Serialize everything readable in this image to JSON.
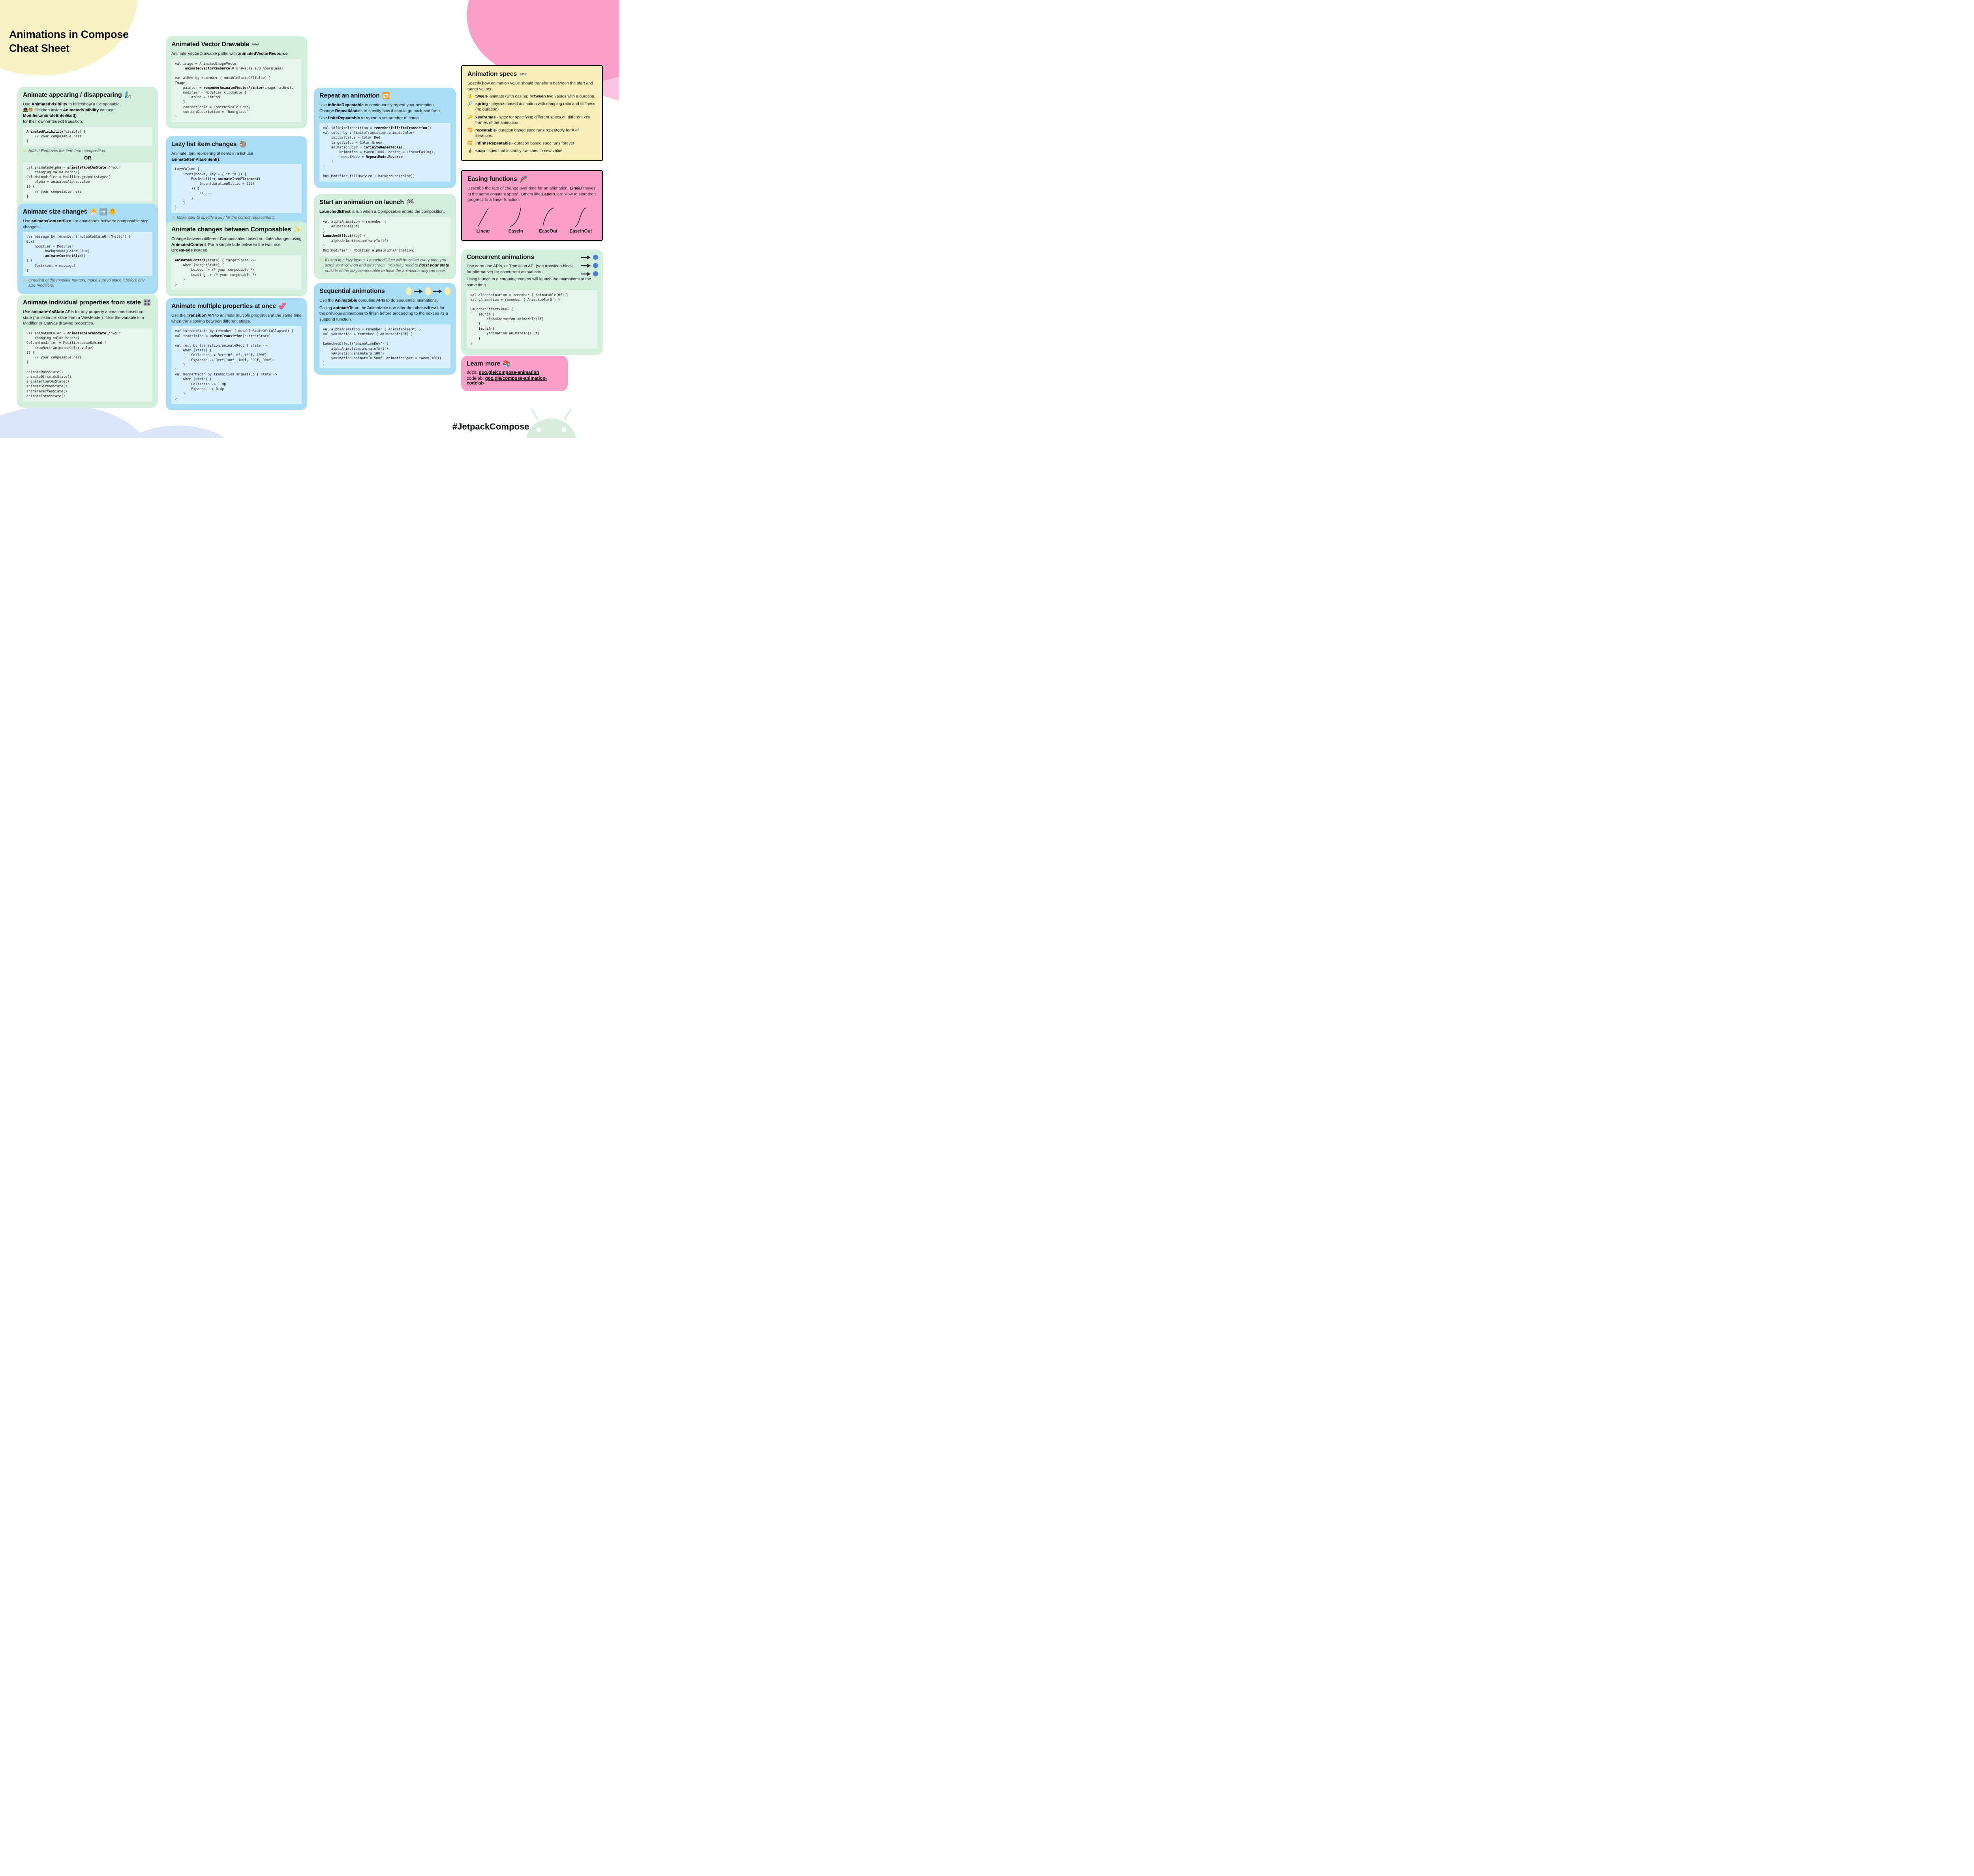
{
  "page": {
    "title_line1": "Animations in Compose",
    "title_line2": "Cheat Sheet",
    "hashtag": "#JetpackCompose"
  },
  "colors": {
    "card_green": "#D2EFDC",
    "card_blue": "#A9DDF6",
    "card_yellow": "#F6EFB9",
    "card_pink": "#F99FC9",
    "code_bg_green": "#E7F6EC",
    "code_bg_blue": "#D8EFFC",
    "blob_yellow": "#F8F2C4",
    "blob_pink": "#F99FC9",
    "blob_pink_light": "#FBC6DD",
    "blob_blue": "#DAE5F9",
    "android_green": "#D8ECDB",
    "concurrent_dot_blue": "#4A7BE8",
    "sequential_dot_yellow": "#F5EFA9",
    "warning_yellow": "#F2B200"
  },
  "cards": {
    "appearing": {
      "title": "Animate appearing / disappearing",
      "emoji": "🧞",
      "intro": [
        {
          "t": "Use "
        },
        {
          "t": "AnimatedVisibility",
          "b": true
        },
        {
          "t": " to hide/show a Composable.\n"
        },
        {
          "t": "👧🏾👦🏼 Children inside "
        },
        {
          "t": "AnimatedVisibility",
          "b": true
        },
        {
          "t": " can use "
        },
        {
          "t": "Modifier.animateEnterExit()",
          "b": true
        },
        {
          "t": "\nfor their own enter/exit transition."
        }
      ],
      "code1": [
        {
          "t": "AnimatedVisibility",
          "b": true
        },
        {
          "t": "(visible) {\n    // your composable here\n}"
        }
      ],
      "warn1_icon": "⚠",
      "warn1": [
        {
          "t": "Adds / Removes the item from composition."
        }
      ],
      "or_label": "OR",
      "code2": [
        {
          "t": "val animatedAlpha = "
        },
        {
          "t": "animateFloatAsState",
          "b": true
        },
        {
          "t": "(/*your\n    changing value here*/)\nColumn(modifier = Modifier.graphicsLayer{\n    alpha = animatedAlpha.value\n}) {\n    // your composable here\n}"
        }
      ],
      "warn2_icon": "⚠",
      "warn2": [
        {
          "t": "Keeps item in the composition - animates its alpha instead"
        }
      ]
    },
    "size": {
      "title": "Animate size changes",
      "emoji": "🐣 ➡️ 🐥",
      "intro": [
        {
          "t": "Use "
        },
        {
          "t": "animateContentSize",
          "b": true
        },
        {
          "t": "  for animations between composable size changes."
        }
      ],
      "code": [
        {
          "t": "var message by remember { mutableStateOf(\"Hello\") }\nBox(\n    modifier = Modifier\n        .background(Color.Blue)\n        ."
        },
        {
          "t": "animateContentSize",
          "b": true
        },
        {
          "t": "()\n) {\n    Text(text = message)\n}"
        }
      ],
      "warn_icon": "⚠",
      "warn": [
        {
          "t": "Ordering of the modifier matters, make sure to place it before any size modifiers."
        }
      ]
    },
    "individual": {
      "title": "Animate individual properties from state",
      "emoji": "🎛️",
      "intro": [
        {
          "t": "Use "
        },
        {
          "t": "animate*AsState",
          "b": true
        },
        {
          "t": " APIs for any property animations based on state (for instance: state from a ViewModel).  Use the variable in a Modifier or Canvas drawing properties."
        }
      ],
      "code": [
        {
          "t": "val animatedColor = "
        },
        {
          "t": "animateColorAsState",
          "b": true
        },
        {
          "t": "(/*your\n    changing value here*/)\nColumn(modifier = Modifier.drawBehind {\n    drawRect(animatedColor.value)\n}) {\n    // your composable here\n}\n\nanimateDpAsState()\nanimateOffsetAsState()\nanimateFloatAsState()\nanimateSizeAsState()\nanimateRectAsState()\nanimateIntAsState()"
        }
      ]
    },
    "avd": {
      "title": "Animated Vector Drawable",
      "emoji": "〰️",
      "intro": [
        {
          "t": "Animate VectorDrawable paths with "
        },
        {
          "t": "animatedVectorResource",
          "b": true
        }
      ],
      "code": [
        {
          "t": "val image = AnimatedImageVector\n    ."
        },
        {
          "t": "animatedVectorResource",
          "b": true
        },
        {
          "t": "(R.drawable.avd_hourglass)\n\nvar atEnd by remember { mutableStateOf(false) }\nImage(\n    painter = "
        },
        {
          "t": "rememberAnimatedVectorPainter",
          "b": true
        },
        {
          "t": "(image, atEnd),\n    modifier = Modifier.clickable {\n        atEnd = !atEnd\n    },\n    contentScale = ContentScale.Crop,\n    contentDescription = \"hourglass\"\n)"
        }
      ]
    },
    "lazy": {
      "title": "Lazy list item changes",
      "emoji": "🦥",
      "intro": [
        {
          "t": "Animate item reordering of items in a list use "
        },
        {
          "t": "animateItemPlacement()",
          "b": true
        },
        {
          "t": "."
        }
      ],
      "code": [
        {
          "t": "LazyColumn {\n    items(books, key = { it.id }) {\n        Row(Modifier."
        },
        {
          "t": "animateItemPlacement",
          "b": true
        },
        {
          "t": "(\n            tween(durationMillis = 250)\n        )) {\n            // ...\n        }\n    }\n}"
        }
      ],
      "warn1_icon": "⚠",
      "warn1": [
        {
          "t": "Make sure to specify a key for the correct replacement."
        }
      ],
      "warn2_icon": "🔜",
      "warn2": [
        {
          "t": "Additions and deletions are coming soon."
        }
      ]
    },
    "between": {
      "title": "Animate changes between Composables",
      "emoji": "✨",
      "intro": [
        {
          "t": "Change between different Composables based on state changes using "
        },
        {
          "t": "AnimatedContent",
          "b": true
        },
        {
          "t": ". For a simple fade between the two, use "
        },
        {
          "t": "CrossFade",
          "b": true
        },
        {
          "t": " instead."
        }
      ],
      "code": [
        {
          "t": "AnimatedContent",
          "b": true
        },
        {
          "t": "(state) { targetState ->\n    when (targetState) {\n        Loaded -> /* your composable */\n        Loading -> /* your composable */\n    }\n}"
        }
      ]
    },
    "multiple": {
      "title": "Animate multiple properties at once",
      "emoji": "💞",
      "intro": [
        {
          "t": "Use the "
        },
        {
          "t": "Transition",
          "b": true
        },
        {
          "t": " API to animate multiple properties at the same time when transitioning between different states."
        }
      ],
      "code": [
        {
          "t": "var currentState by remember { mutableStateOf(Collapsed) }\nval transition = "
        },
        {
          "t": "updateTransition",
          "b": true
        },
        {
          "t": "(currentState)\n\nval rect by transition.animateRect { state ->\n    when (state) {\n        Collapsed -> Rect(0f, 0f, 100f, 100f)\n        Expanded -> Rect(100f, 100f, 300f, 300f)\n    }\n}\nval borderWidth by transition.animateDp { state ->\n    when (state) {\n        Collapsed -> 1.dp\n        Expanded -> 0.dp\n    }\n}"
        }
      ]
    },
    "repeat": {
      "title": "Repeat an animation",
      "emoji": "🔁",
      "intro1": [
        {
          "t": "Use "
        },
        {
          "t": "infiniteRepeatable",
          "b": true
        },
        {
          "t": " to continuously repeat your animation. Change "
        },
        {
          "t": "RepeatMode",
          "b": true
        },
        {
          "t": "'s to specify how it should go back and forth."
        }
      ],
      "intro2": [
        {
          "t": "Use "
        },
        {
          "t": "finiteRepeatable",
          "b": true
        },
        {
          "t": " to repeat a set number of times."
        }
      ],
      "code": [
        {
          "t": "val infiniteTransition = "
        },
        {
          "t": "rememberInfiniteTransition",
          "b": true
        },
        {
          "t": "()\nval color by infiniteTransition.animateColor(\n    initialValue = Color.Red,\n    targetValue = Color.Green,\n    animationSpec = "
        },
        {
          "t": "infiniteRepeatable",
          "b": true
        },
        {
          "t": "(\n        animation = tween(1000, easing = LinearEasing),\n        repeatMode = "
        },
        {
          "t": "RepeatMode.Reverse",
          "b": true
        },
        {
          "t": "\n    )\n)\n\nBox(Modifier.fillMaxSize().background(color))"
        }
      ]
    },
    "launch": {
      "title": "Start an animation on launch",
      "emoji": "🏁",
      "intro": [
        {
          "t": "LaunchedEffect",
          "b": true
        },
        {
          "t": " is run when a Composable enters the composition."
        }
      ],
      "code": [
        {
          "t": "val alphaAnimation = remember {\n    Animatable(0f)\n}\n"
        },
        {
          "t": "LaunchedEffect",
          "b": true
        },
        {
          "t": "(key) {\n    alphaAnimation.animateTo(1f)\n}\nBox(modifier = Modifier.alpha(alphaAnimation))"
        }
      ],
      "warn_icon": "⚠",
      "warn": [
        {
          "t": "If used in a lazy layout, LaunchedEffect will be called every time you scroll your view on and off screen.  You may need to "
        },
        {
          "t": "hoist your state",
          "b": true
        },
        {
          "t": " outside of the lazy composable to have the animation only run once."
        }
      ]
    },
    "sequential": {
      "title": "Sequential animations",
      "intro1": [
        {
          "t": "Use the "
        },
        {
          "t": "Animatable",
          "b": true
        },
        {
          "t": " coroutine APIs to do sequential animations."
        }
      ],
      "intro2": [
        {
          "t": "Calling "
        },
        {
          "t": "animateTo",
          "b": true
        },
        {
          "t": " on the Animatable one after the other will wait for the previous animations to finish before proceeding to the next as its a suspend function."
        }
      ],
      "code": [
        {
          "t": "val alphaAnimation = remember { Animatable(0f) }\nval yAnimation = remember { Animatable(0f) }\n\nLaunchedEffect(“animationKey”) {\n    alphaAnimation.animateTo(1f)\n    yAnimation.animateTo(100f)\n    yAnimation.animateTo(500f, animationSpec = tween(100))\n}"
        }
      ]
    },
    "specs": {
      "title": "Animation specs",
      "emoji": "👓",
      "intro": [
        {
          "t": "Specify how animation value should transform between the start and target values:"
        }
      ],
      "items": [
        {
          "icon": "🖖",
          "segs": [
            {
              "t": "tween",
              "b": true
            },
            {
              "t": "- animate (with easing) be"
            },
            {
              "t": "tween",
              "b": true
            },
            {
              "t": " two values with a duration."
            }
          ]
        },
        {
          "icon": "🎾",
          "segs": [
            {
              "t": "spring",
              "b": true
            },
            {
              "t": " - physics-based animation with damping ratio and stiffness (no duration)"
            }
          ]
        },
        {
          "icon": "🔑",
          "segs": [
            {
              "t": "keyframes",
              "b": true
            },
            {
              "t": " - spec for specifying different specs at  different key frames of the animation."
            }
          ]
        },
        {
          "icon": "🔂",
          "segs": [
            {
              "t": "repeatable",
              "b": true
            },
            {
              "t": "- duration based spec runs repeatadly for # of iterations."
            }
          ]
        },
        {
          "icon": "🔁",
          "segs": [
            {
              "t": "infiniteRepeatable",
              "b": true
            },
            {
              "t": " - duration based spec runs forever"
            }
          ]
        },
        {
          "icon": "🤞🏽",
          "segs": [
            {
              "t": "snap",
              "b": true
            },
            {
              "t": " - spec that instantly switches to new value"
            }
          ]
        }
      ]
    },
    "easing": {
      "title": "Easing functions",
      "emoji": "🎢",
      "intro": [
        {
          "t": "Describe the rate of change over time for an animation. "
        },
        {
          "t": "Linear",
          "b": true
        },
        {
          "t": " moves at the same constant speed. Others like "
        },
        {
          "t": "EaseIn",
          "b": true
        },
        {
          "t": ", are slow to start then progress to a linear function."
        }
      ],
      "curve_labels": [
        "Linear",
        "EaseIn",
        "EaseOut",
        "EaseInOut"
      ]
    },
    "concurrent": {
      "title": "Concurrent animations",
      "intro1": [
        {
          "t": "Use coroutine APIs, or Transition API (see transition block for alternative) for concurrent animations."
        }
      ],
      "intro2": [
        {
          "t": "Using launch in a coroutine context will launch the animations at the same time."
        }
      ],
      "code": [
        {
          "t": "val alphaAnimation = remember { Animatable(0f) }\nval yAnimation = remember { Animatable(0f) }\n\nLaunchedEffect(key) {\n    "
        },
        {
          "t": "launch",
          "b": true
        },
        {
          "t": " {\n        alphaAnimation.animateTo(1f)\n    }\n    "
        },
        {
          "t": "launch",
          "b": true
        },
        {
          "t": " {\n        yAnimation.animateTo(100f)\n    }\n}"
        }
      ]
    },
    "learn": {
      "title": "Learn more",
      "emoji": "📚",
      "docs_label": "docs: ",
      "docs_link": "goo.gle/compose-animation",
      "codelab_label": "codelab: ",
      "codelab_link": "goo.gle/compose-animation-codelab"
    }
  }
}
